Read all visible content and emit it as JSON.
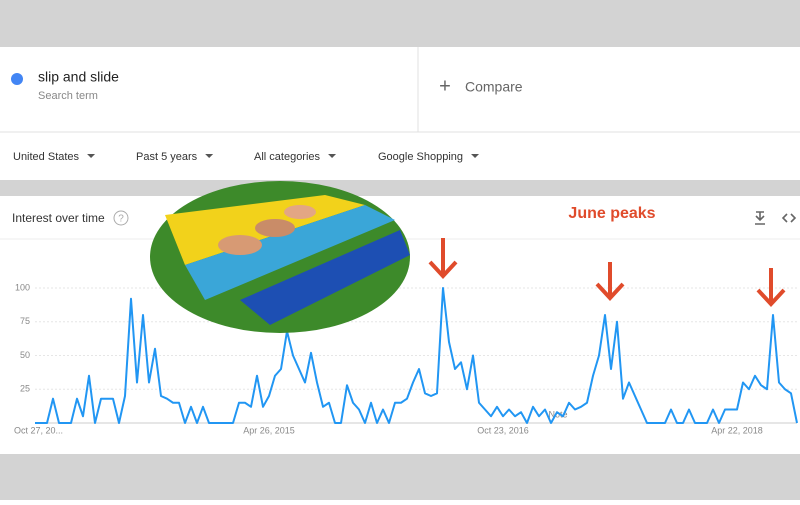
{
  "search": {
    "term": "slip and slide",
    "term_label": "Search term",
    "compare_icon": "+",
    "compare": "Compare"
  },
  "filters": [
    "United States",
    "Past 5 years",
    "All categories",
    "Google Shopping"
  ],
  "card": {
    "title": "Interest over time"
  },
  "chart_data": {
    "type": "line",
    "annotation": "June peaks",
    "note": "Note",
    "categories": [
      "Oct 27, 20...",
      null,
      null,
      null,
      null,
      null,
      null,
      null,
      null,
      null,
      null,
      null,
      null,
      null,
      null,
      null,
      null,
      null,
      null,
      null,
      null,
      null,
      null,
      null,
      null,
      null,
      null,
      null,
      null,
      null,
      null,
      null,
      null,
      null,
      null,
      null,
      null,
      null,
      null,
      "Apr 26, 2015",
      null,
      null,
      null,
      null,
      null,
      null,
      null,
      null,
      null,
      null,
      null,
      null,
      null,
      null,
      null,
      null,
      null,
      null,
      null,
      null,
      null,
      null,
      null,
      null,
      null,
      null,
      null,
      null,
      null,
      null,
      null,
      null,
      null,
      null,
      null,
      null,
      null,
      null,
      "Oct 23, 2016",
      null,
      null,
      null,
      null,
      null,
      null,
      null,
      null,
      null,
      null,
      null,
      null,
      null,
      null,
      null,
      null,
      null,
      null,
      null,
      null,
      null,
      null,
      null,
      null,
      null,
      null,
      null,
      null,
      null,
      null,
      null,
      null,
      null,
      null,
      null,
      null,
      null,
      null,
      "Apr 22, 2018",
      null,
      null,
      null,
      null,
      null,
      null,
      null,
      null,
      null,
      null
    ],
    "series": [
      {
        "name": "slip and slide",
        "color": "#2196f3",
        "values": [
          0,
          0,
          0,
          18,
          0,
          0,
          0,
          18,
          5,
          35,
          0,
          18,
          18,
          18,
          0,
          20,
          92,
          30,
          80,
          30,
          55,
          20,
          18,
          15,
          15,
          0,
          12,
          0,
          12,
          0,
          0,
          0,
          0,
          0,
          15,
          15,
          12,
          35,
          12,
          20,
          35,
          40,
          68,
          50,
          40,
          30,
          52,
          30,
          12,
          15,
          0,
          0,
          28,
          15,
          10,
          0,
          15,
          0,
          10,
          0,
          15,
          15,
          18,
          30,
          40,
          22,
          20,
          22,
          100,
          60,
          40,
          45,
          25,
          50,
          15,
          10,
          5,
          12,
          5,
          10,
          5,
          8,
          0,
          12,
          5,
          10,
          0,
          8,
          5,
          15,
          10,
          12,
          15,
          35,
          50,
          80,
          40,
          75,
          18,
          30,
          20,
          10,
          0,
          0,
          0,
          0,
          10,
          0,
          0,
          10,
          0,
          0,
          0,
          10,
          0,
          10,
          10,
          10,
          30,
          25,
          35,
          28,
          25,
          80,
          30,
          25,
          22,
          0
        ]
      }
    ],
    "ylim": [
      0,
      100
    ],
    "yticks": [
      25,
      50,
      75,
      100
    ],
    "grid": true
  }
}
